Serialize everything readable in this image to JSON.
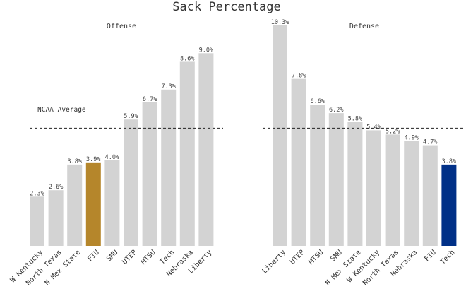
{
  "title": "Sack Percentage",
  "average_label": "NCAA Average",
  "colors": {
    "default_bar": "#d3d3d3",
    "fiu_bar": "#b5862b",
    "tech_bar": "#003087",
    "average_line": "#222222"
  },
  "chart_data": [
    {
      "type": "bar",
      "subtitle": "Offense",
      "categories": [
        "W Kentucky",
        "North Texas",
        "N Mex State",
        "FIU",
        "SMU",
        "UTEP",
        "MTSU",
        "Tech",
        "Nebraska",
        "Liberty"
      ],
      "values": [
        2.3,
        2.6,
        3.8,
        3.9,
        4.0,
        5.9,
        6.7,
        7.3,
        8.6,
        9.0
      ],
      "value_labels": [
        "2.3%",
        "2.6%",
        "3.8%",
        "3.9%",
        "4.0%",
        "5.9%",
        "6.7%",
        "7.3%",
        "8.6%",
        "9.0%"
      ],
      "highlight": {
        "FIU": "#b5862b"
      },
      "average": 5.5,
      "ylim": [
        0,
        10.3
      ],
      "grid": false
    },
    {
      "type": "bar",
      "subtitle": "Defense",
      "categories": [
        "Liberty",
        "UTEP",
        "MTSU",
        "SMU",
        "N Mex State",
        "W Kentucky",
        "North Texas",
        "Nebraska",
        "FIU",
        "Tech"
      ],
      "values": [
        10.3,
        7.8,
        6.6,
        6.2,
        5.8,
        5.4,
        5.2,
        4.9,
        4.7,
        3.8
      ],
      "value_labels": [
        "10.3%",
        "7.8%",
        "6.6%",
        "6.2%",
        "5.8%",
        "5.4%",
        "5.2%",
        "4.9%",
        "4.7%",
        "3.8%"
      ],
      "highlight": {
        "Tech": "#003087"
      },
      "average": 5.5,
      "ylim": [
        0,
        10.3
      ],
      "grid": false
    }
  ]
}
